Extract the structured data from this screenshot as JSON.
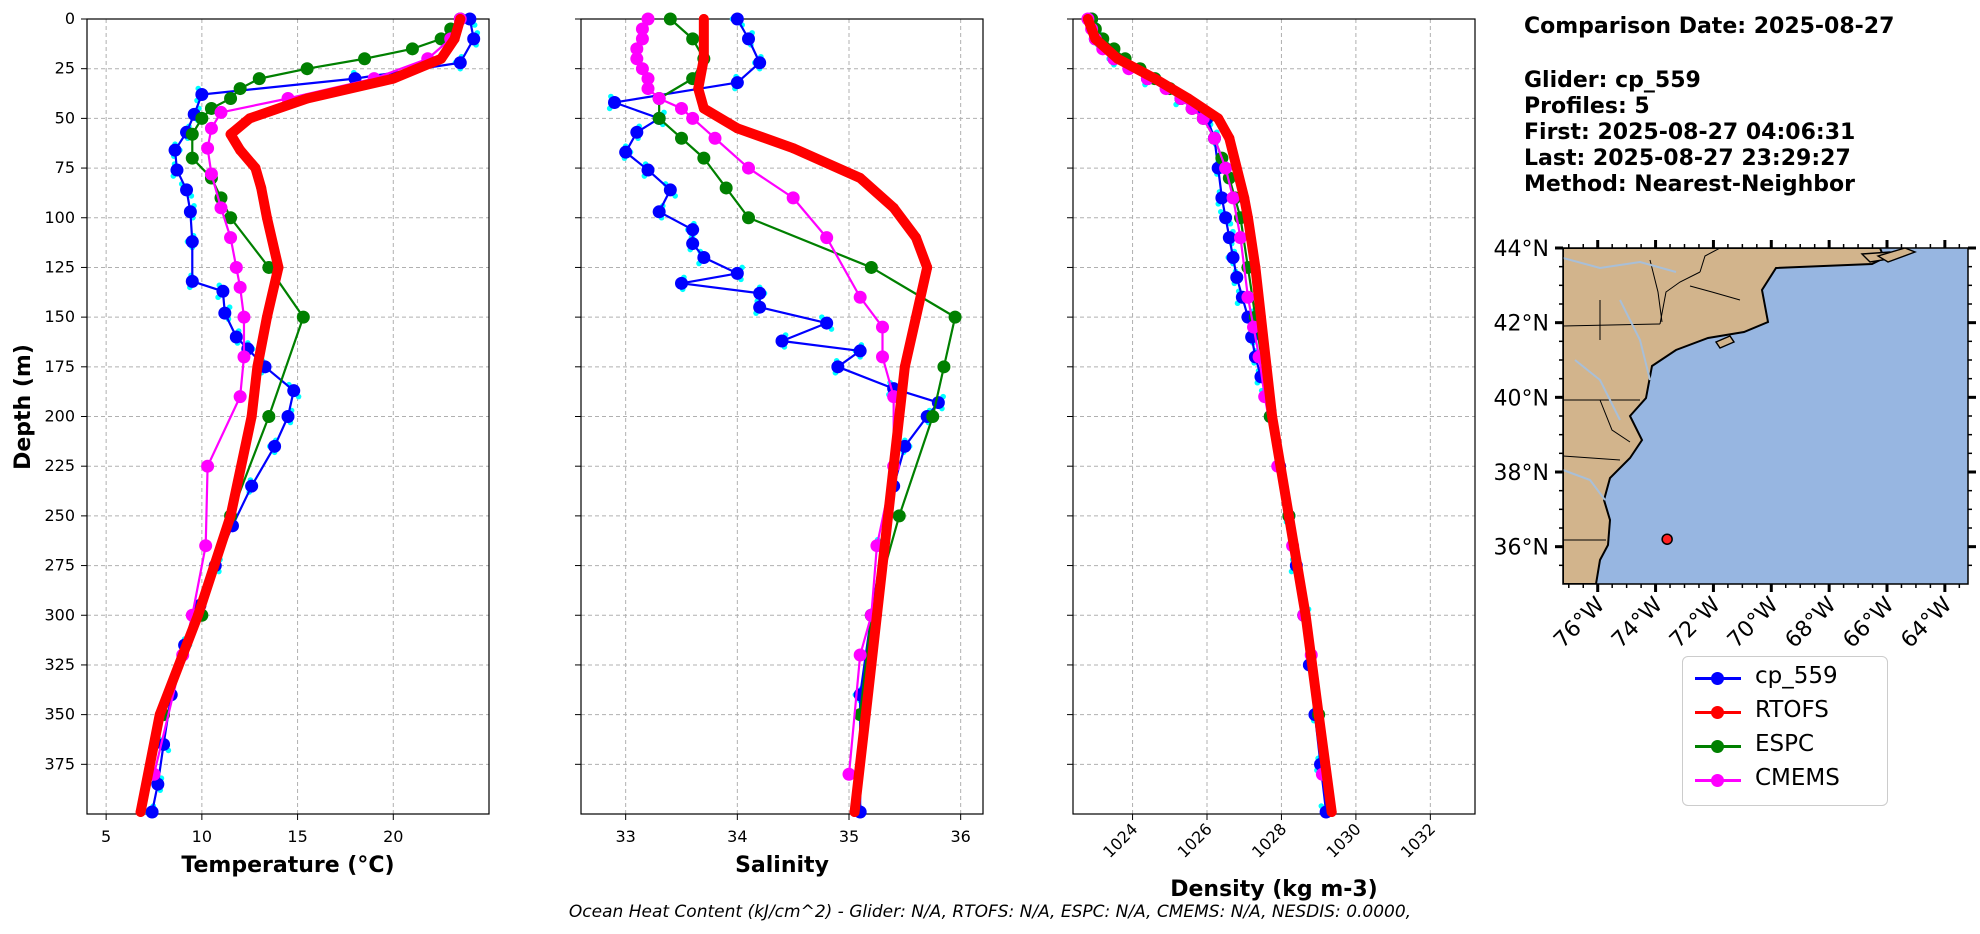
{
  "info": {
    "comparison_date": "Comparison Date: 2025-08-27",
    "glider": "Glider: cp_559",
    "profiles": "Profiles: 5",
    "first": "First: 2025-08-27 04:06:31",
    "last": "Last: 2025-08-27 23:29:27",
    "method": "Method: Nearest-Neighbor"
  },
  "legend": [
    {
      "label": "cp_559",
      "color": "#0000ff"
    },
    {
      "label": "RTOFS",
      "color": "#ff0000"
    },
    {
      "label": "ESPC",
      "color": "#008000"
    },
    {
      "label": "CMEMS",
      "color": "#ff00ff"
    }
  ],
  "footer": "Ocean Heat Content (kJ/cm^2) - Glider: N/A,  RTOFS: N/A,  ESPC: N/A,  CMEMS: N/A,  NESDIS: 0.0000,",
  "map": {
    "lat_labels": [
      "44°N",
      "42°N",
      "40°N",
      "38°N",
      "36°N"
    ],
    "lon_labels": [
      "76°W",
      "74°W",
      "72°W",
      "70°W",
      "68°W",
      "66°W",
      "64°W"
    ],
    "land_color": "#d2b48c",
    "ocean_color": "#97b6e1",
    "glider_position": {
      "lon": -73.6,
      "lat": 36.2
    }
  },
  "chart_data": [
    {
      "type": "line",
      "title": "",
      "xlabel": "Temperature (°C)",
      "ylabel": "Depth (m)",
      "xlim": [
        4,
        25
      ],
      "ylim": [
        400,
        0
      ],
      "xticks": [
        5,
        10,
        15,
        20
      ],
      "yticks": [
        0,
        25,
        50,
        75,
        100,
        125,
        150,
        175,
        200,
        225,
        250,
        275,
        300,
        325,
        350,
        375
      ],
      "series": [
        {
          "name": "cp_559",
          "color": "#0000ff",
          "depth": [
            0,
            10,
            22,
            30,
            38,
            48,
            57,
            66,
            76,
            86,
            97,
            112,
            132,
            137,
            148,
            160,
            166,
            175,
            187,
            200,
            215,
            235,
            255,
            275,
            295,
            315,
            340,
            365,
            385,
            399
          ],
          "values": [
            24.0,
            24.2,
            23.5,
            18.0,
            10.0,
            9.6,
            9.2,
            8.6,
            8.7,
            9.2,
            9.4,
            9.5,
            9.5,
            11.1,
            11.2,
            11.8,
            12.4,
            13.3,
            14.8,
            14.5,
            13.8,
            12.6,
            11.6,
            10.7,
            9.9,
            9.1,
            8.4,
            8.0,
            7.7,
            7.4
          ]
        },
        {
          "name": "RTOFS",
          "color": "#ff0000",
          "depth": [
            0,
            10,
            20,
            30,
            40,
            50,
            58,
            66,
            75,
            85,
            100,
            125,
            150,
            175,
            200,
            250,
            300,
            350,
            399
          ],
          "values": [
            23.5,
            23.2,
            22.5,
            20.0,
            15.5,
            12.5,
            11.5,
            12.0,
            12.8,
            13.1,
            13.4,
            14.0,
            13.4,
            12.9,
            12.6,
            11.5,
            9.8,
            7.8,
            6.8
          ]
        },
        {
          "name": "ESPC",
          "color": "#008000",
          "depth": [
            0,
            5,
            10,
            15,
            20,
            25,
            30,
            35,
            40,
            45,
            50,
            58,
            70,
            80,
            90,
            100,
            125,
            150,
            200,
            250,
            300,
            350
          ],
          "values": [
            23.5,
            23.0,
            22.5,
            21.0,
            18.5,
            15.5,
            13.0,
            12.0,
            11.5,
            10.5,
            10.0,
            9.5,
            9.5,
            10.5,
            11.0,
            11.5,
            13.5,
            15.3,
            13.5,
            11.5,
            10.0,
            8.0
          ]
        },
        {
          "name": "CMEMS",
          "color": "#ff00ff",
          "depth": [
            0,
            10,
            20,
            30,
            40,
            47,
            55,
            65,
            78,
            95,
            110,
            125,
            135,
            150,
            170,
            190,
            225,
            265,
            300,
            320,
            380
          ],
          "values": [
            23.5,
            23.0,
            21.8,
            19.0,
            14.5,
            11.0,
            10.5,
            10.3,
            10.5,
            11.0,
            11.5,
            11.8,
            12.0,
            12.2,
            12.2,
            12.0,
            10.3,
            10.2,
            9.5,
            9.0,
            7.5
          ]
        }
      ]
    },
    {
      "type": "line",
      "title": "",
      "xlabel": "Salinity",
      "ylabel": "",
      "xlim": [
        32.6,
        36.2
      ],
      "ylim": [
        400,
        0
      ],
      "xticks": [
        33,
        34,
        35,
        36
      ],
      "series": [
        {
          "name": "cp_559",
          "color": "#0000ff",
          "depth": [
            0,
            10,
            22,
            32,
            42,
            50,
            57,
            67,
            76,
            86,
            97,
            106,
            113,
            120,
            128,
            133,
            138,
            145,
            153,
            162,
            167,
            175,
            186,
            193,
            200,
            215,
            235,
            265,
            300,
            340,
            399
          ],
          "values": [
            34.0,
            34.1,
            34.2,
            34.0,
            32.9,
            33.3,
            33.1,
            33.0,
            33.2,
            33.4,
            33.3,
            33.6,
            33.6,
            33.7,
            34.0,
            33.5,
            34.2,
            34.2,
            34.8,
            34.4,
            35.1,
            34.9,
            35.4,
            35.8,
            35.7,
            35.5,
            35.4,
            35.3,
            35.2,
            35.1,
            35.1
          ]
        },
        {
          "name": "RTOFS",
          "color": "#ff0000",
          "depth": [
            0,
            20,
            35,
            45,
            55,
            65,
            80,
            95,
            110,
            125,
            150,
            175,
            200,
            250,
            300,
            350,
            399
          ],
          "values": [
            33.7,
            33.7,
            33.65,
            33.7,
            34.0,
            34.5,
            35.1,
            35.4,
            35.6,
            35.7,
            35.6,
            35.5,
            35.45,
            35.35,
            35.25,
            35.15,
            35.05
          ]
        },
        {
          "name": "ESPC",
          "color": "#008000",
          "depth": [
            0,
            10,
            20,
            30,
            40,
            50,
            60,
            70,
            85,
            100,
            125,
            150,
            175,
            200,
            250,
            300,
            350
          ],
          "values": [
            33.4,
            33.6,
            33.7,
            33.6,
            33.3,
            33.3,
            33.5,
            33.7,
            33.9,
            34.1,
            35.2,
            35.95,
            35.85,
            35.75,
            35.45,
            35.2,
            35.1
          ]
        },
        {
          "name": "CMEMS",
          "color": "#ff00ff",
          "depth": [
            0,
            5,
            10,
            15,
            20,
            25,
            30,
            35,
            40,
            45,
            50,
            60,
            75,
            90,
            110,
            140,
            155,
            170,
            190,
            225,
            265,
            300,
            320,
            380
          ],
          "values": [
            33.2,
            33.15,
            33.15,
            33.1,
            33.1,
            33.15,
            33.2,
            33.2,
            33.3,
            33.5,
            33.6,
            33.8,
            34.1,
            34.5,
            34.8,
            35.1,
            35.3,
            35.3,
            35.4,
            35.4,
            35.25,
            35.2,
            35.1,
            35.0
          ]
        }
      ]
    },
    {
      "type": "line",
      "title": "",
      "xlabel": "Density (kg m-3)",
      "ylabel": "",
      "xlim": [
        1022.4,
        1033.2
      ],
      "ylim": [
        400,
        0
      ],
      "xticks": [
        1024,
        1026,
        1028,
        1030,
        1032
      ],
      "series": [
        {
          "name": "cp_559",
          "color": "#0000ff",
          "depth": [
            0,
            10,
            20,
            30,
            40,
            50,
            60,
            75,
            90,
            100,
            110,
            120,
            130,
            140,
            150,
            160,
            170,
            180,
            190,
            200,
            225,
            250,
            275,
            300,
            325,
            350,
            375,
            399
          ],
          "values": [
            1022.9,
            1023.0,
            1023.5,
            1024.4,
            1025.3,
            1026.0,
            1026.2,
            1026.3,
            1026.4,
            1026.5,
            1026.6,
            1026.7,
            1026.8,
            1026.95,
            1027.1,
            1027.2,
            1027.3,
            1027.45,
            1027.6,
            1027.7,
            1027.95,
            1028.2,
            1028.4,
            1028.6,
            1028.75,
            1028.9,
            1029.05,
            1029.2
          ]
        },
        {
          "name": "RTOFS",
          "color": "#ff0000",
          "depth": [
            0,
            10,
            20,
            30,
            40,
            50,
            60,
            75,
            90,
            100,
            125,
            150,
            175,
            200,
            250,
            300,
            350,
            399
          ],
          "values": [
            1022.8,
            1023.0,
            1023.6,
            1024.6,
            1025.5,
            1026.3,
            1026.6,
            1026.8,
            1027.0,
            1027.1,
            1027.3,
            1027.45,
            1027.6,
            1027.75,
            1028.2,
            1028.65,
            1029.0,
            1029.35
          ]
        },
        {
          "name": "ESPC",
          "color": "#008000",
          "depth": [
            0,
            5,
            10,
            15,
            20,
            25,
            30,
            35,
            40,
            45,
            50,
            60,
            70,
            80,
            90,
            100,
            125,
            150,
            200,
            250,
            300,
            350
          ],
          "values": [
            1022.9,
            1023.0,
            1023.2,
            1023.5,
            1023.8,
            1024.2,
            1024.6,
            1025.0,
            1025.3,
            1025.6,
            1025.9,
            1026.2,
            1026.4,
            1026.6,
            1026.75,
            1026.9,
            1027.1,
            1027.3,
            1027.7,
            1028.2,
            1028.6,
            1029.0
          ]
        },
        {
          "name": "CMEMS",
          "color": "#ff00ff",
          "depth": [
            0,
            5,
            10,
            15,
            20,
            25,
            30,
            35,
            40,
            45,
            50,
            60,
            75,
            90,
            110,
            140,
            155,
            170,
            190,
            225,
            265,
            300,
            320,
            380
          ],
          "values": [
            1022.8,
            1022.9,
            1023.0,
            1023.2,
            1023.5,
            1023.9,
            1024.4,
            1024.9,
            1025.3,
            1025.6,
            1025.9,
            1026.2,
            1026.5,
            1026.7,
            1026.9,
            1027.1,
            1027.25,
            1027.4,
            1027.55,
            1027.9,
            1028.3,
            1028.6,
            1028.8,
            1029.1
          ]
        }
      ]
    }
  ]
}
